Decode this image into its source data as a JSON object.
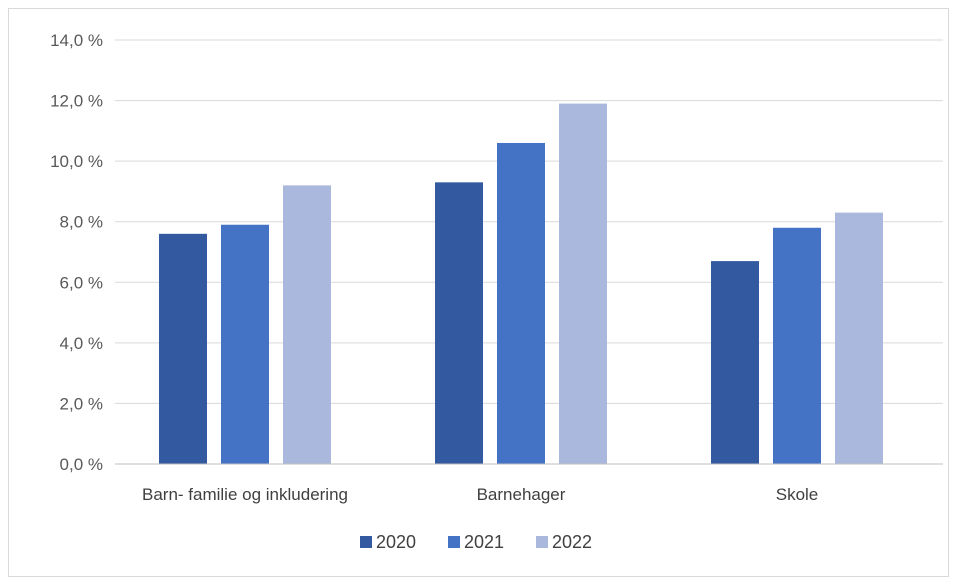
{
  "chart_data": {
    "type": "bar",
    "title": "",
    "xlabel": "",
    "ylabel": "",
    "categories": [
      "Barn- familie og inkludering",
      "Barnehager",
      "Skole"
    ],
    "series": [
      {
        "name": "2020",
        "color": "#335AA1",
        "values": [
          7.6,
          9.3,
          6.7
        ]
      },
      {
        "name": "2021",
        "color": "#4472C4",
        "values": [
          7.9,
          10.6,
          7.8
        ]
      },
      {
        "name": "2022",
        "color": "#A9B8DC",
        "values": [
          9.2,
          11.9,
          8.3
        ]
      }
    ],
    "ylim": [
      0,
      14
    ],
    "yticks": [
      "0,0 %",
      "2,0 %",
      "4,0 %",
      "6,0 %",
      "8,0 %",
      "10,0 %",
      "12,0 %",
      "14,0 %"
    ],
    "grid": true,
    "legend_position": "bottom"
  }
}
